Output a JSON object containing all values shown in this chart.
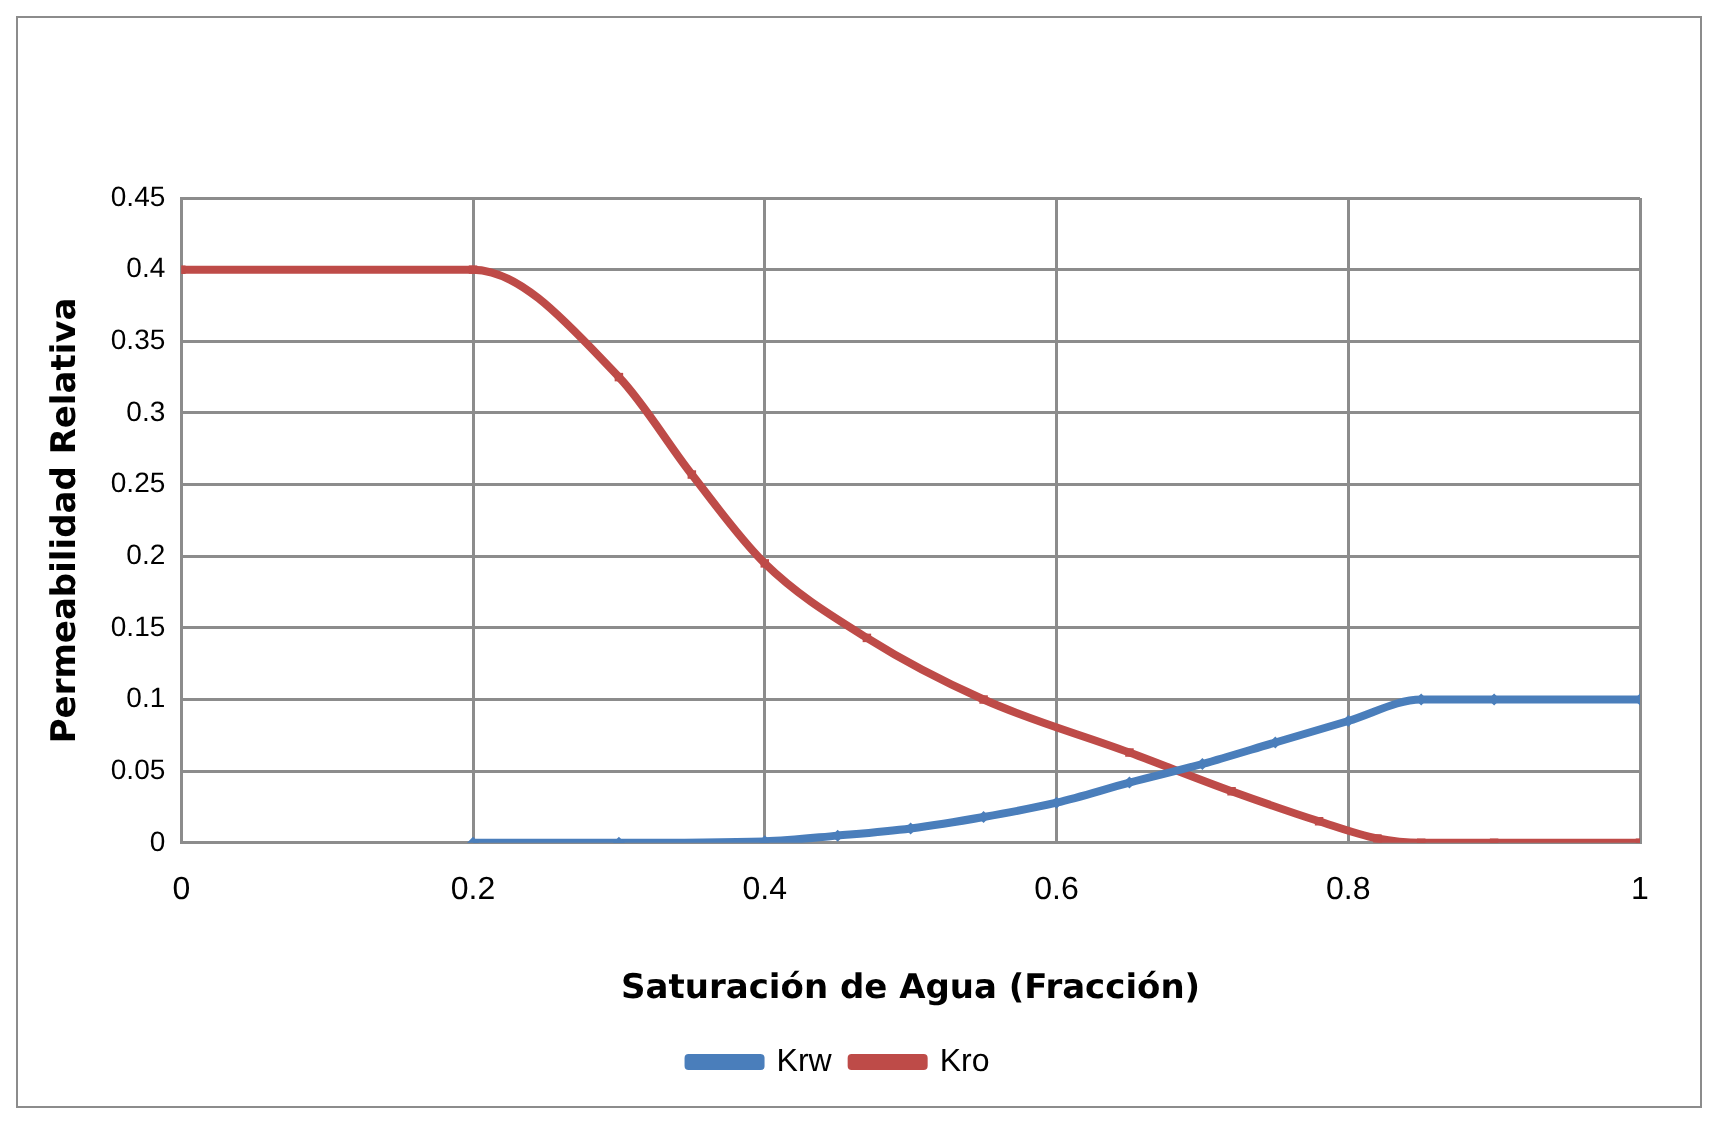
{
  "chart_data": {
    "type": "line",
    "xlabel": "Saturación de Agua (Fracción)",
    "ylabel": "Permeabilidad Relativa",
    "xlim": [
      0,
      1
    ],
    "xticks": [
      0,
      0.2,
      0.4,
      0.6,
      0.8,
      1
    ],
    "ylim": [
      0,
      0.45
    ],
    "yticks": [
      0,
      0.05,
      0.1,
      0.15,
      0.2,
      0.25,
      0.3,
      0.35,
      0.4,
      0.45
    ],
    "grid": true,
    "legend": "bottom",
    "series": [
      {
        "name": "Krw",
        "color": "#4a7ebb",
        "marker": "diamond",
        "x": [
          0.2,
          0.3,
          0.4,
          0.45,
          0.5,
          0.55,
          0.6,
          0.65,
          0.7,
          0.75,
          0.8,
          0.85,
          0.9,
          1
        ],
        "values": [
          0,
          0,
          0.001,
          0.005,
          0.01,
          0.018,
          0.028,
          0.042,
          0.055,
          0.07,
          0.085,
          0.1,
          0.1,
          0.1
        ]
      },
      {
        "name": "Kro",
        "color": "#be4b48",
        "marker": "square",
        "x": [
          0,
          0.2,
          0.3,
          0.35,
          0.4,
          0.47,
          0.55,
          0.65,
          0.72,
          0.78,
          0.82,
          0.85,
          0.9,
          1
        ],
        "values": [
          0.4,
          0.4,
          0.325,
          0.257,
          0.195,
          0.143,
          0.1,
          0.063,
          0.036,
          0.015,
          0.003,
          0,
          0,
          0
        ]
      }
    ]
  }
}
